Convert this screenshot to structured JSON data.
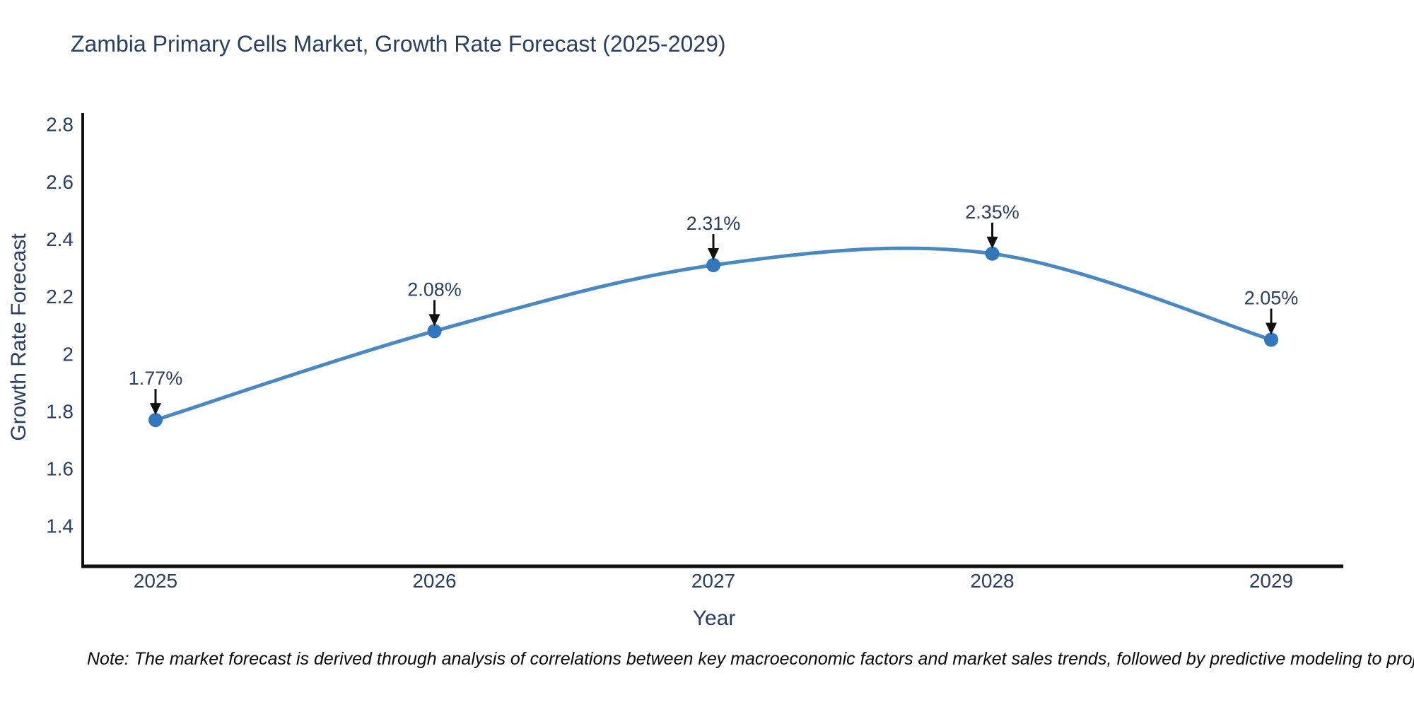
{
  "chart_data": {
    "type": "line",
    "title": "Zambia Primary Cells Market, Growth Rate Forecast (2025-2029)",
    "xlabel": "Year",
    "ylabel": "Growth Rate Forecast",
    "categories": [
      "2025",
      "2026",
      "2027",
      "2028",
      "2029"
    ],
    "series": [
      {
        "name": "Growth Rate Forecast",
        "values": [
          1.77,
          2.08,
          2.31,
          2.35,
          2.05
        ]
      }
    ],
    "data_labels": [
      "1.77%",
      "2.08%",
      "2.31%",
      "2.35%",
      "2.05%"
    ],
    "yticks": [
      1.4,
      1.6,
      1.8,
      2,
      2.2,
      2.4,
      2.6,
      2.8
    ],
    "ylim": [
      1.26,
      2.84
    ],
    "line_shape": "spline",
    "grid": false,
    "legend": "none",
    "colors": {
      "line": "#4a88c1",
      "marker": "#3277bd",
      "axis": "#101010",
      "tick_text": "#2a3f5f",
      "annotation_text": "#2a3f5f",
      "arrow": "#101010"
    }
  },
  "footnote": "Note: The market forecast is derived through analysis of correlations between key macroeconomic factors and market sales trends, followed by predictive modeling to project future sales"
}
